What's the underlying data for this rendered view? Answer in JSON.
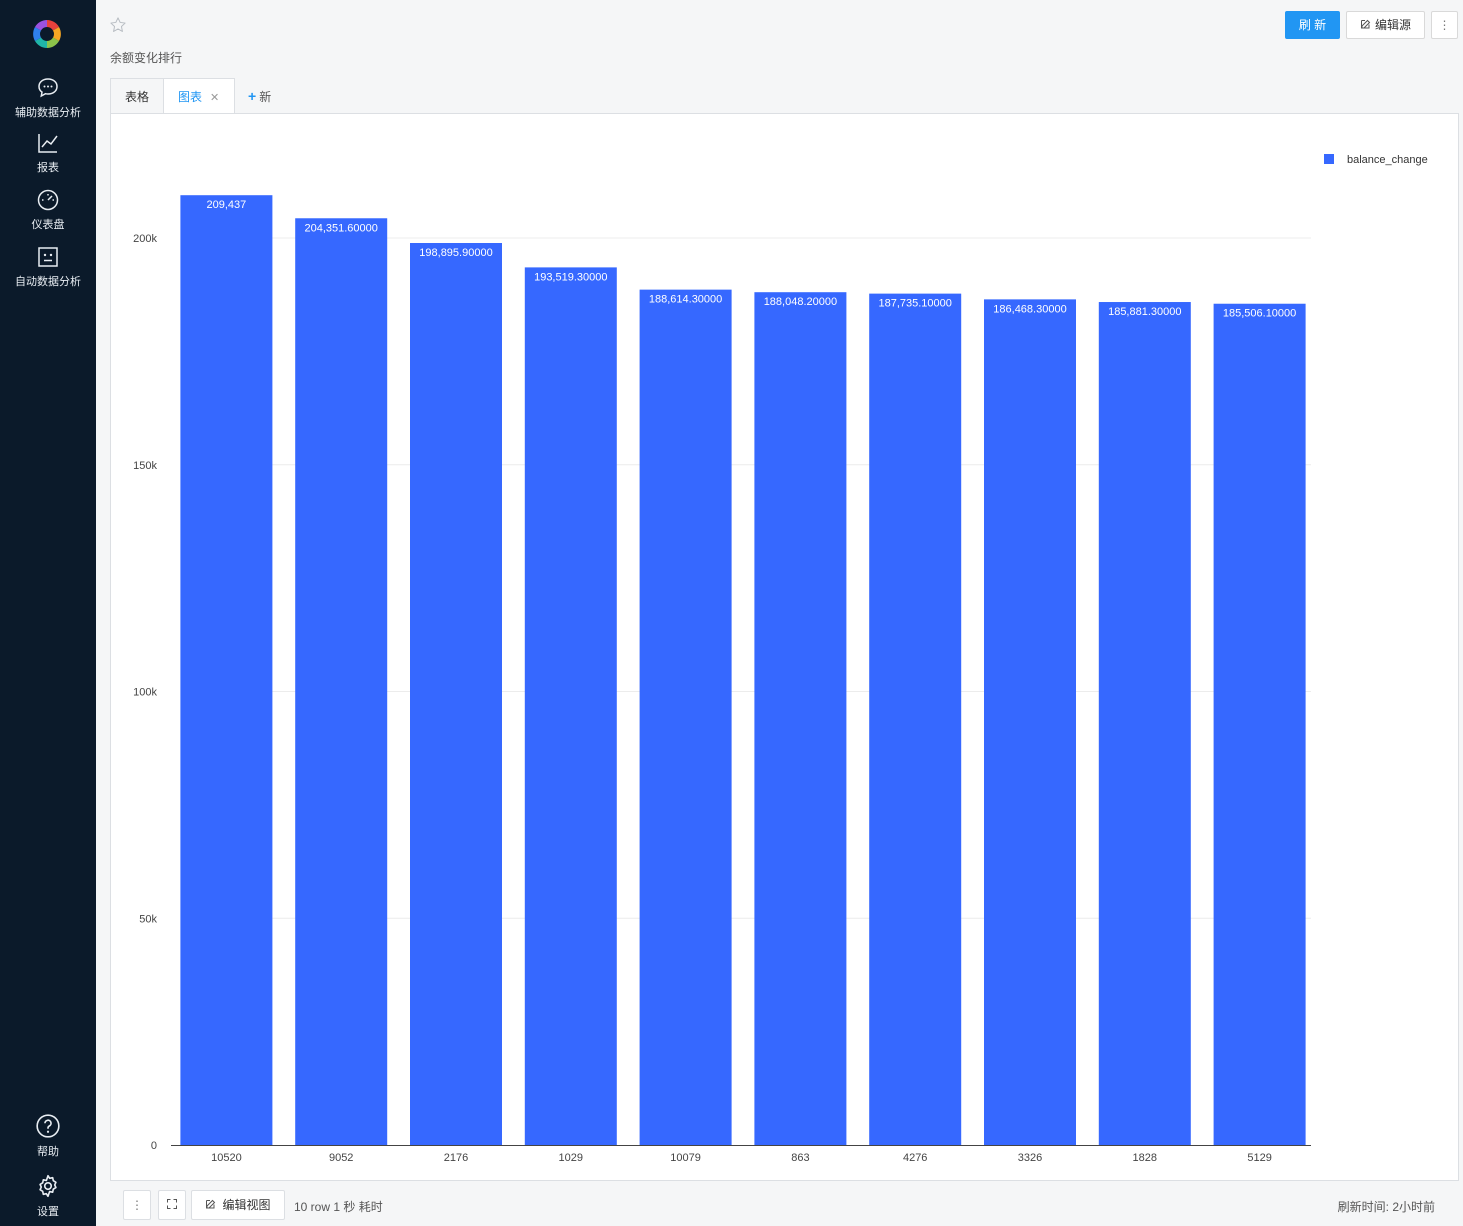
{
  "sidebar": {
    "items": [
      {
        "label": "辅助数据分析",
        "icon": "chat-bubble-icon"
      },
      {
        "label": "报表",
        "icon": "line-chart-icon"
      },
      {
        "label": "仪表盘",
        "icon": "gauge-icon"
      },
      {
        "label": "自动数据分析",
        "icon": "robot-face-icon"
      }
    ],
    "bottom_items": [
      {
        "label": "帮助",
        "icon": "help-circle-icon"
      },
      {
        "label": "设置",
        "icon": "gear-icon"
      }
    ]
  },
  "header": {
    "title": "余额变化排行",
    "refresh_label": "刷 新",
    "edit_source_label": "编辑源",
    "more_label": "⋮"
  },
  "tabs": [
    {
      "label": "表格",
      "active": false
    },
    {
      "label": "图表",
      "active": true,
      "closable": true
    }
  ],
  "add_view_label": "新增视图",
  "chart_data": {
    "type": "bar",
    "categories": [
      "10520",
      "9052",
      "2176",
      "1029",
      "10079",
      "863",
      "4276",
      "3326",
      "1828",
      "5129"
    ],
    "series": [
      {
        "name": "balance_change",
        "values": [
          209437,
          204351.6,
          198895.9,
          193519.3,
          188614.3,
          188048.2,
          187735.1,
          186468.3,
          185881.3,
          185506.1
        ],
        "labels": [
          "209,437",
          "204,351.60000",
          "198,895.90000",
          "193,519.30000",
          "188,614.30000",
          "188,048.20000",
          "187,735.10000",
          "186,468.30000",
          "185,881.30000",
          "185,506.10000"
        ]
      }
    ],
    "yticks": [
      0,
      50000,
      100000,
      150000,
      200000
    ],
    "ytick_labels": [
      "0",
      "50k",
      "100k",
      "150k",
      "200k"
    ],
    "ylim": [
      0,
      200000
    ],
    "grid": true,
    "legend_position": "top-right",
    "bar_color": "#3668ff"
  },
  "footer": {
    "more_label": "⋮",
    "edit_view_label": "编辑视图",
    "stats": "10 row 1 秒 耗时",
    "refresh_time": "刷新时间: 2小时前"
  }
}
